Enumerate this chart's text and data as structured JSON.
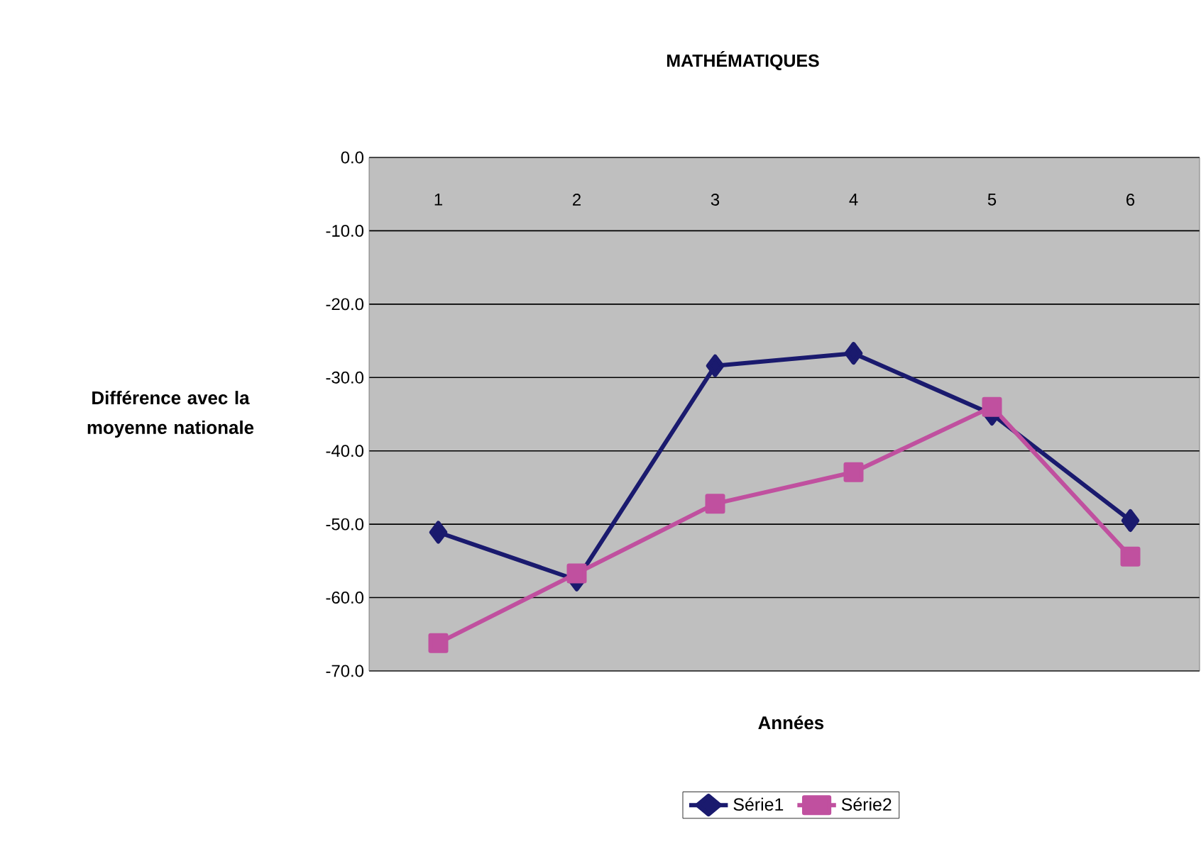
{
  "chart_data": {
    "type": "line",
    "title": "MATHÉMATIQUES",
    "xlabel": "Années",
    "ylabel": "Différence avec la moyenne nationale",
    "categories": [
      "1",
      "2",
      "3",
      "4",
      "5",
      "6"
    ],
    "series": [
      {
        "name": "Série1",
        "color": "#1a1a6e",
        "marker": "diamond",
        "values": [
          -51.1,
          -57.6,
          -28.4,
          -26.7,
          -35.0,
          -49.5
        ]
      },
      {
        "name": "Série2",
        "color": "#c0509f",
        "marker": "square",
        "values": [
          -66.2,
          -56.7,
          -47.2,
          -42.9,
          -34.0,
          -54.4
        ]
      }
    ],
    "ylim": [
      -70,
      0
    ],
    "yticks": [
      {
        "value": -70,
        "label": "-70.0"
      },
      {
        "value": -60,
        "label": "-60.0"
      },
      {
        "value": -50,
        "label": "-50.0"
      },
      {
        "value": -40,
        "label": "-40.0"
      },
      {
        "value": -30,
        "label": "-30.0"
      },
      {
        "value": -20,
        "label": "-20.0"
      },
      {
        "value": -10,
        "label": "-10.0"
      },
      {
        "value": 0,
        "label": "0.0"
      }
    ],
    "grid": "y",
    "legend": "bottom",
    "line_style": "solid"
  }
}
